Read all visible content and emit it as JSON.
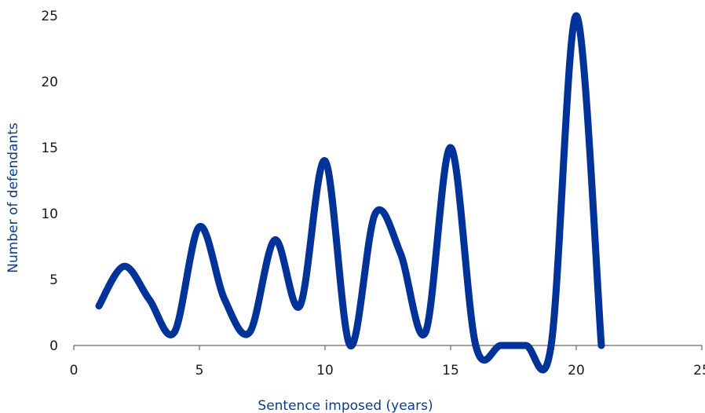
{
  "chart_data": {
    "type": "line",
    "title": "",
    "xlabel": "Sentence imposed (years)",
    "ylabel": "Number of defendants",
    "xlim": [
      0,
      25
    ],
    "ylim": [
      0,
      25
    ],
    "xticks": [
      0,
      5,
      10,
      15,
      20,
      25
    ],
    "yticks": [
      0,
      5,
      10,
      15,
      20,
      25
    ],
    "grid": false,
    "legend": "none",
    "series": [
      {
        "color": "#003399",
        "smooth": true,
        "x": [
          1,
          2,
          3,
          4,
          5,
          6,
          7,
          8,
          9,
          10,
          11,
          12,
          13,
          14,
          15,
          16,
          17,
          18,
          19,
          20,
          21
        ],
        "values": [
          3,
          6,
          3.5,
          1,
          9,
          3.5,
          1,
          8,
          3,
          14,
          0,
          10,
          7,
          1,
          15,
          0,
          0,
          0,
          0,
          25,
          0
        ]
      }
    ]
  }
}
